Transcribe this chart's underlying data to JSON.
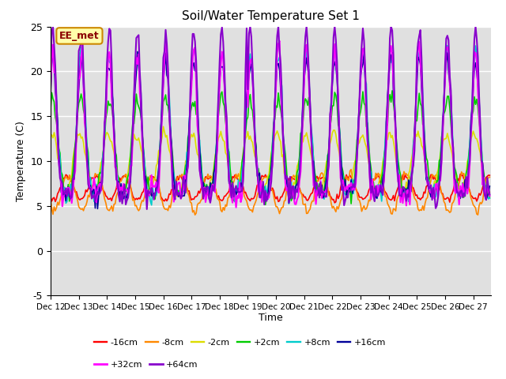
{
  "title": "Soil/Water Temperature Set 1",
  "ylabel": "Temperature (C)",
  "xlabel": "Time",
  "annotation": "EE_met",
  "ylim": [
    -5,
    25
  ],
  "xlim": [
    0,
    375
  ],
  "background_color": "#e0e0e0",
  "series_order": [
    "-16cm",
    "-8cm",
    "-2cm",
    "+2cm",
    "+8cm",
    "+16cm",
    "+32cm",
    "+64cm"
  ],
  "series": {
    "-16cm": {
      "color": "#ff0000",
      "lw": 1.2
    },
    "-8cm": {
      "color": "#ff8800",
      "lw": 1.2
    },
    "-2cm": {
      "color": "#dddd00",
      "lw": 1.2
    },
    "+2cm": {
      "color": "#00cc00",
      "lw": 1.2
    },
    "+8cm": {
      "color": "#00cccc",
      "lw": 1.2
    },
    "+16cm": {
      "color": "#000099",
      "lw": 1.2
    },
    "+32cm": {
      "color": "#ff00ff",
      "lw": 1.5
    },
    "+64cm": {
      "color": "#8800cc",
      "lw": 1.5
    }
  },
  "yticks": [
    -5,
    0,
    5,
    10,
    15,
    20,
    25
  ],
  "tick_labels": [
    "Dec 12",
    "Dec 13",
    "Dec 14",
    "Dec 15",
    "Dec 16",
    "Dec 17",
    "Dec 18",
    "Dec 19",
    "Dec 20",
    "Dec 21",
    "Dec 22",
    "Dec 23",
    "Dec 24",
    "Dec 25",
    "Dec 26",
    "Dec 27"
  ],
  "tick_positions": [
    0,
    24,
    48,
    72,
    96,
    120,
    144,
    168,
    192,
    216,
    240,
    264,
    288,
    312,
    336,
    360
  ],
  "legend_row1": [
    "-16cm",
    "-8cm",
    "-2cm",
    "+2cm",
    "+8cm",
    "+16cm"
  ],
  "legend_row2": [
    "+32cm",
    "+64cm"
  ]
}
